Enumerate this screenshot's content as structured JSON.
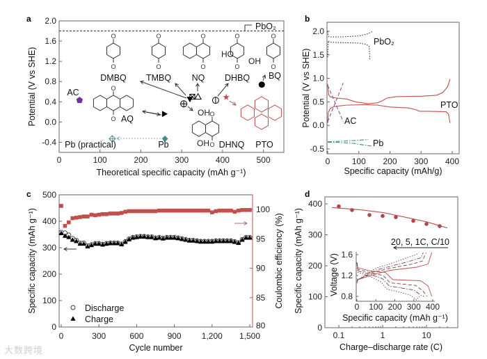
{
  "panels": {
    "a": "a",
    "b": "b",
    "c": "c",
    "d": "d"
  },
  "colors": {
    "pto": "#c0504d",
    "ac": "#7030a0",
    "pb": "#3f8f83",
    "axis": "#555555",
    "ce": "#c0504d"
  },
  "chart_data": [
    {
      "id": "a",
      "type": "scatter",
      "xlabel": "Theoretical specific capacity (mAh g⁻¹)",
      "ylabel": "Potential (V vs SHE)",
      "xlim": [
        0,
        550
      ],
      "ylim": [
        -0.6,
        2.0
      ],
      "xticks": [
        "0",
        "100",
        "200",
        "300",
        "400",
        "500"
      ],
      "xtick_values": [
        0,
        100,
        200,
        300,
        400,
        500
      ],
      "yticks": [
        "-0.4",
        "0.0",
        "0.4",
        "0.8",
        "1.2",
        "1.6",
        "2.0"
      ],
      "ytick_values": [
        -0.4,
        0,
        0.4,
        0.8,
        1.2,
        1.6,
        2.0
      ],
      "reference_line": {
        "label": "PbO₂",
        "y": 1.8
      },
      "points": [
        {
          "name": "AC",
          "x": 50,
          "y": 0.43,
          "marker": "pentagon",
          "color": "#7030a0"
        },
        {
          "name": "AQ",
          "x": 258,
          "y": 0.16,
          "marker": "triangle-right",
          "color": "#000000"
        },
        {
          "name": "DMBQ",
          "x": 320,
          "y": 0.45,
          "marker": "triangle-down",
          "color": "#000000"
        },
        {
          "name": "TMBQ",
          "x": 326,
          "y": 0.5,
          "marker": "box-x",
          "color": "#000000"
        },
        {
          "name": "NQ",
          "x": 340,
          "y": 0.5,
          "marker": "triangle-open",
          "color": "#000000"
        },
        {
          "name": "DHNQ",
          "x": 305,
          "y": 0.36,
          "marker": "circle-plus",
          "color": "#000000"
        },
        {
          "name": "DHBQ",
          "x": 383,
          "y": 0.43,
          "marker": "circle-bar",
          "color": "#000000"
        },
        {
          "name": "PTO",
          "x": 409,
          "y": 0.49,
          "marker": "star",
          "color": "#c0504d"
        },
        {
          "name": "BQ",
          "x": 496,
          "y": 0.74,
          "marker": "circle",
          "color": "#000000"
        },
        {
          "name": "Pb",
          "x": 259,
          "y": -0.33,
          "marker": "diamond",
          "color": "#3f8f83"
        },
        {
          "name": "Pb (practical)",
          "x": 130,
          "y": -0.33,
          "marker": "diamond-open",
          "color": "#3f8f83"
        }
      ],
      "labels": {
        "DMBQ": "DMBQ",
        "TMBQ": "TMBQ",
        "NQ": "NQ",
        "DHBQ": "DHBQ",
        "BQ": "BQ",
        "AC": "AC",
        "AQ": "AQ",
        "DHNQ": "DHNQ",
        "PTO": "PTO",
        "Pb": "Pb",
        "Pb_practical": "Pb (practical)",
        "OH": "OH",
        "HO": "HO",
        "O": "O"
      }
    },
    {
      "id": "b",
      "type": "line",
      "xlabel": "Specific capacity (mAh/g)",
      "ylabel": "Potential (V vs SHE)",
      "xlim": [
        0,
        400
      ],
      "ylim": [
        -0.6,
        2.2
      ],
      "xticks": [
        "0",
        "100",
        "200",
        "300",
        "400"
      ],
      "xtick_values": [
        0,
        100,
        200,
        300,
        400
      ],
      "yticks": [
        "-0.5",
        "0.0",
        "0.5",
        "1.0",
        "1.5",
        "2.0"
      ],
      "ytick_values": [
        -0.5,
        0,
        0.5,
        1.0,
        1.5,
        2.0
      ],
      "series": [
        {
          "name": "PbO₂",
          "label": "PbO₂",
          "color": "#333333",
          "dash": "dot",
          "x": [
            0,
            2,
            5,
            40,
            100,
            130,
            145
          ],
          "y": [
            2.0,
            1.9,
            1.88,
            1.88,
            1.9,
            1.95,
            2.0
          ]
        },
        {
          "name": "PbO₂ discharge",
          "color": "#333333",
          "dash": "dot",
          "x": [
            0,
            2,
            5,
            40,
            100,
            125,
            133,
            135,
            135
          ],
          "y": [
            1.45,
            1.8,
            1.77,
            1.76,
            1.75,
            1.72,
            1.68,
            1.5,
            1.38
          ]
        },
        {
          "name": "PTO",
          "label": "PTO",
          "color": "#c0504d",
          "dash": "solid",
          "x": [
            0,
            3,
            10,
            30,
            60,
            90,
            130,
            160,
            175,
            190,
            220,
            300,
            350,
            370,
            385,
            393
          ],
          "y": [
            0.88,
            0.65,
            0.6,
            0.58,
            0.56,
            0.5,
            0.46,
            0.48,
            0.52,
            0.58,
            0.61,
            0.62,
            0.64,
            0.7,
            0.82,
            0.98
          ]
        },
        {
          "name": "PTO discharge",
          "color": "#c0504d",
          "dash": "solid",
          "x": [
            0,
            2,
            8,
            20,
            60,
            120,
            160,
            200,
            260,
            280,
            295,
            320,
            380,
            388,
            393
          ],
          "y": [
            0.05,
            0.28,
            0.36,
            0.4,
            0.43,
            0.44,
            0.43,
            0.39,
            0.37,
            0.34,
            0.3,
            0.3,
            0.29,
            0.24,
            0.05
          ]
        },
        {
          "name": "AC",
          "label": "AC",
          "color": "#7a5aa0",
          "dash": "dash",
          "x": [
            0,
            50
          ],
          "y": [
            0.85,
            0.08
          ]
        },
        {
          "name": "AC charge",
          "color": "#7a5aa0",
          "dash": "dash",
          "x": [
            0,
            50
          ],
          "y": [
            0.08,
            0.9
          ]
        },
        {
          "name": "Pb",
          "label": "Pb",
          "color": "#3f8f83",
          "dash": "dashdot",
          "x": [
            0,
            30,
            70,
            130
          ],
          "y": [
            -0.35,
            -0.34,
            -0.33,
            -0.3
          ]
        },
        {
          "name": "Pb discharge",
          "color": "#3f8f83",
          "dash": "dashdot",
          "x": [
            0,
            30,
            80,
            140
          ],
          "y": [
            -0.36,
            -0.36,
            -0.38,
            -0.44
          ]
        }
      ]
    },
    {
      "id": "c",
      "type": "scatter",
      "xlabel": "Cycle number",
      "ylabel": "Specific capacity (mAh g⁻¹)",
      "y2label": "Coulombic efficiency (%)",
      "xlim": [
        -15,
        1530
      ],
      "ylim": [
        0,
        500
      ],
      "y2lim": [
        80,
        102.5
      ],
      "xticks": [
        "0",
        "300",
        "600",
        "900",
        "1,200",
        "1,500"
      ],
      "xtick_values": [
        0,
        300,
        600,
        900,
        1200,
        1500
      ],
      "yticks": [
        "0",
        "100",
        "200",
        "300",
        "400",
        "500"
      ],
      "ytick_values": [
        0,
        100,
        200,
        300,
        400,
        500
      ],
      "y2ticks": [
        "80",
        "85",
        "90",
        "95",
        "100"
      ],
      "y2tick_values": [
        80,
        85,
        90,
        95,
        100
      ],
      "legend": {
        "position": "bottom-left",
        "discharge": "Discharge",
        "charge": "Charge"
      },
      "x": [
        0,
        30,
        60,
        90,
        120,
        150,
        180,
        210,
        240,
        270,
        300,
        330,
        360,
        390,
        420,
        450,
        480,
        510,
        540,
        570,
        600,
        630,
        660,
        690,
        720,
        750,
        780,
        810,
        840,
        870,
        900,
        930,
        960,
        990,
        1020,
        1050,
        1080,
        1110,
        1140,
        1170,
        1200,
        1230,
        1260,
        1290,
        1320,
        1350,
        1380,
        1410,
        1440,
        1470,
        1500
      ],
      "series": [
        {
          "name": "Discharge",
          "marker": "circle-open",
          "values": [
            358,
            356,
            348,
            335,
            328,
            318,
            318,
            307,
            311,
            316,
            316,
            313,
            316,
            318,
            318,
            318,
            314,
            323,
            333,
            339,
            341,
            343,
            343,
            341,
            341,
            337,
            339,
            336,
            339,
            339,
            339,
            337,
            334,
            331,
            328,
            328,
            326,
            324,
            324,
            324,
            324,
            326,
            326,
            326,
            326,
            326,
            323,
            319,
            331,
            339,
            339
          ]
        },
        {
          "name": "Charge",
          "marker": "triangle",
          "values": [
            355,
            345,
            340,
            330,
            325,
            315,
            315,
            305,
            310,
            315,
            315,
            312,
            315,
            317,
            317,
            317,
            313,
            322,
            332,
            338,
            340,
            342,
            342,
            340,
            340,
            336,
            338,
            335,
            338,
            338,
            338,
            336,
            333,
            330,
            327,
            327,
            325,
            323,
            323,
            323,
            323,
            325,
            325,
            325,
            325,
            325,
            322,
            318,
            330,
            338,
            338
          ]
        },
        {
          "name": "Coulombic efficiency",
          "axis": "right",
          "marker": "square",
          "color": "#c0504d",
          "values": [
            100.6,
            97.2,
            97.8,
            98.5,
            98.6,
            98.7,
            98.8,
            98.8,
            99.1,
            99.0,
            99.1,
            99.2,
            99.2,
            99.3,
            99.3,
            99.3,
            99.4,
            99.6,
            99.7,
            99.7,
            99.7,
            99.7,
            99.7,
            99.7,
            99.7,
            99.7,
            99.8,
            99.8,
            99.8,
            99.8,
            99.8,
            99.8,
            99.8,
            99.8,
            99.8,
            99.8,
            99.8,
            99.8,
            99.8,
            99.8,
            99.5,
            99.7,
            99.8,
            99.8,
            99.8,
            99.8,
            99.6,
            99.8,
            99.9,
            99.9,
            99.9
          ]
        }
      ]
    },
    {
      "id": "d",
      "type": "scatter",
      "xlabel": "Charge–discharge rate (C)",
      "ylabel": "Specific capacity (mAh g⁻¹)",
      "xscale": "log",
      "xlim": [
        0.05,
        40
      ],
      "ylim": [
        0,
        420
      ],
      "xticks": [
        "0.1",
        "1",
        "10"
      ],
      "xtick_values": [
        0.1,
        1,
        10
      ],
      "yticks": [
        "0",
        "100",
        "200",
        "300",
        "400"
      ],
      "ytick_values": [
        0,
        100,
        200,
        300,
        400
      ],
      "x": [
        0.1,
        0.2,
        0.5,
        1,
        2,
        5,
        10,
        20
      ],
      "values": [
        392,
        380,
        364,
        361,
        357,
        345,
        335,
        328
      ],
      "fit": {
        "x": [
          0.07,
          0.3,
          1,
          3,
          10,
          30
        ],
        "y": [
          388,
          381,
          372,
          358,
          342,
          322
        ]
      },
      "annotation": "20, 5, 1C, C/10",
      "inset": {
        "xlabel": "Specific capacity (mAh g⁻¹)",
        "ylabel": "Voltage (V)",
        "xlim": [
          -10,
          420
        ],
        "ylim": [
          0.72,
          1.68
        ],
        "xticks": [
          "0",
          "100",
          "200",
          "300",
          "400"
        ],
        "xtick_values": [
          0,
          100,
          200,
          300,
          400
        ],
        "yticks": [
          "0.8",
          "1.2",
          "1.6"
        ],
        "ytick_values": [
          0.8,
          1.2,
          1.6
        ],
        "series": [
          {
            "name": "C/10",
            "dash": "solid",
            "cmax": 395,
            "charge_end": 395,
            "discharge_end": 395
          },
          {
            "name": "1C",
            "dash": "dash",
            "cmax": 365,
            "charge_end": 365,
            "discharge_end": 370
          },
          {
            "name": "5C",
            "dash": "dashdot",
            "cmax": 355,
            "charge_end": 350,
            "discharge_end": 355
          },
          {
            "name": "20C",
            "dash": "dot",
            "cmax": 330,
            "charge_end": 325,
            "discharge_end": 330
          }
        ]
      }
    }
  ],
  "watermark": "大数跨境"
}
